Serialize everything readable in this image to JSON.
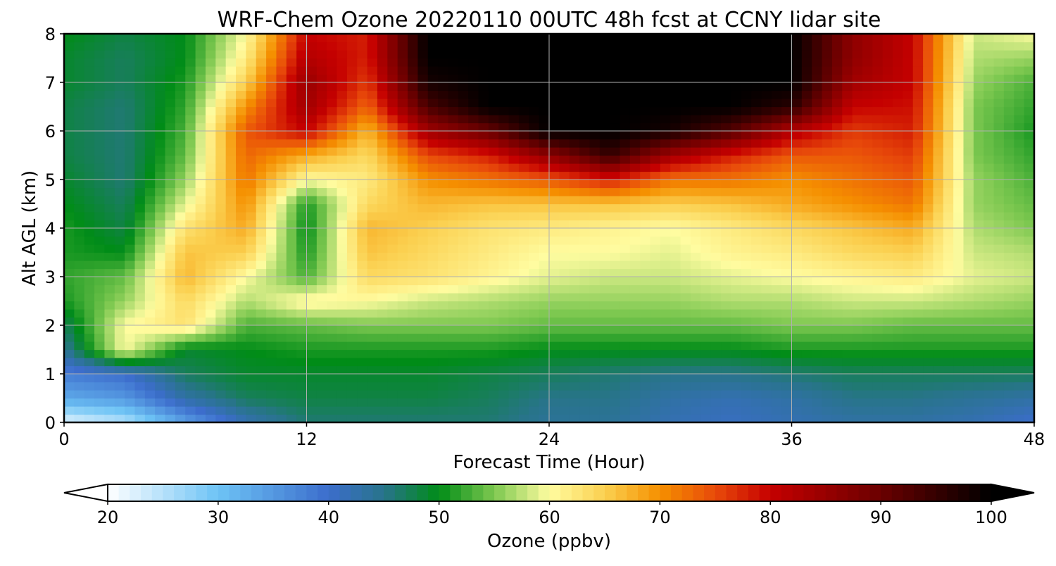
{
  "chart_data": {
    "type": "heatmap",
    "title": "WRF-Chem Ozone  20220110 00UTC 48h fcst at CCNY lidar site",
    "xlabel": "Forecast Time (Hour)",
    "ylabel": "Alt AGL (km)",
    "xlim": [
      0,
      48
    ],
    "ylim": [
      0,
      8
    ],
    "xticks": [
      "0",
      "12",
      "24",
      "36",
      "48"
    ],
    "yticks": [
      "0",
      "1",
      "2",
      "3",
      "4",
      "5",
      "6",
      "7",
      "8"
    ],
    "grid": true,
    "x": [
      0,
      3,
      6,
      9,
      12,
      15,
      18,
      21,
      24,
      27,
      30,
      33,
      36,
      39,
      42,
      45,
      48
    ],
    "y": [
      0,
      0.5,
      1,
      1.5,
      2,
      2.5,
      3,
      3.5,
      4,
      4.5,
      5,
      5.5,
      6,
      6.5,
      7,
      7.5,
      8
    ],
    "z": [
      [
        22,
        25,
        34,
        42,
        46,
        46,
        46,
        46,
        44,
        44,
        42,
        41,
        42,
        43,
        43,
        42,
        40
      ],
      [
        33,
        35,
        43,
        47,
        48,
        48,
        48,
        47,
        45,
        45,
        43,
        42,
        43,
        45,
        45,
        44,
        43
      ],
      [
        38,
        40,
        47,
        49,
        49,
        49,
        49,
        48,
        47,
        46,
        45,
        45,
        46,
        47,
        47,
        47,
        47
      ],
      [
        44,
        60,
        49,
        50,
        51,
        51,
        51,
        51,
        50,
        50,
        50,
        50,
        51,
        51,
        51,
        51,
        51
      ],
      [
        47,
        60,
        63,
        53,
        54,
        55,
        55,
        55,
        54,
        54,
        54,
        54,
        55,
        55,
        54,
        54,
        54
      ],
      [
        51,
        56,
        64,
        57,
        61,
        60,
        58,
        57,
        56,
        56,
        56,
        57,
        57,
        58,
        58,
        57,
        56
      ],
      [
        52,
        54,
        67,
        60,
        53,
        64,
        63,
        61,
        59,
        58,
        58,
        59,
        60,
        61,
        62,
        59,
        58
      ],
      [
        51,
        50,
        66,
        65,
        51,
        66,
        64,
        62,
        60,
        60,
        59,
        61,
        62,
        64,
        65,
        58,
        57
      ],
      [
        51,
        48,
        63,
        68,
        50,
        67,
        65,
        63,
        62,
        61,
        60,
        62,
        64,
        66,
        68,
        57,
        55
      ],
      [
        50,
        47,
        59,
        70,
        51,
        64,
        67,
        66,
        66,
        66,
        65,
        66,
        68,
        70,
        72,
        56,
        54
      ],
      [
        49,
        46,
        56,
        72,
        60,
        62,
        70,
        72,
        74,
        78,
        72,
        72,
        70,
        72,
        74,
        56,
        53
      ],
      [
        48,
        46,
        54,
        73,
        68,
        64,
        75,
        78,
        86,
        95,
        84,
        78,
        74,
        74,
        76,
        55,
        52
      ],
      [
        48,
        46,
        53,
        74,
        80,
        67,
        84,
        90,
        100,
        100,
        98,
        92,
        82,
        76,
        78,
        55,
        51
      ],
      [
        48,
        46,
        52,
        70,
        84,
        73,
        93,
        100,
        100,
        100,
        100,
        100,
        96,
        80,
        79,
        55,
        52
      ],
      [
        49,
        47,
        51,
        65,
        85,
        76,
        98,
        100,
        100,
        100,
        100,
        100,
        100,
        84,
        80,
        56,
        53
      ],
      [
        49,
        47,
        50,
        62,
        82,
        78,
        100,
        100,
        100,
        100,
        100,
        100,
        100,
        86,
        80,
        57,
        56
      ],
      [
        50,
        48,
        50,
        60,
        80,
        78,
        100,
        100,
        100,
        100,
        100,
        100,
        100,
        86,
        80,
        58,
        60
      ]
    ],
    "colorbar": {
      "label": "Ozone  (ppbv)",
      "ticks": [
        "20",
        "30",
        "40",
        "50",
        "60",
        "70",
        "80",
        "90",
        "100"
      ],
      "range": [
        20,
        100
      ],
      "extend": "both"
    },
    "colors": {
      "20": "#ffffff",
      "30": "#6dc3f5",
      "40": "#3c6dcc",
      "45": "#28748a",
      "50": "#008c17",
      "55": "#7dc850",
      "60": "#fffca0",
      "65": "#fbd050",
      "70": "#f59000",
      "75": "#e84a0a",
      "80": "#c50000",
      "90": "#6a0000",
      "100": "#000000",
      "grid": "#b0b0b0"
    }
  }
}
